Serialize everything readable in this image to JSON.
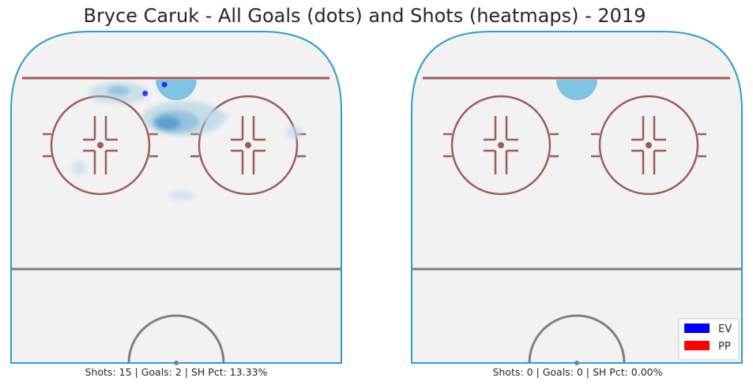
{
  "chart_data": {
    "type": "scatter",
    "title": "Bryce Caruk - All Goals (dots) and Shots (heatmaps) - 2019",
    "legend": {
      "placement": "bottom-right",
      "entries": [
        {
          "label": "EV",
          "color": "#0000ff"
        },
        {
          "label": "PP",
          "color": "#ff0000"
        }
      ]
    },
    "panels": [
      {
        "caption": "Shots: 15 | Goals: 2 | SH Pct: 13.33%",
        "shots": 15,
        "goals_count": 2,
        "goals": [
          {
            "x": -3,
            "y": 88,
            "strength": "EV"
          },
          {
            "x": -8,
            "y": 86,
            "strength": "EV"
          }
        ],
        "heatmap_color": "#1f77b4"
      },
      {
        "caption": "Shots: 0 | Goals: 0 | SH Pct: 0.00%",
        "shots": 0,
        "goals_count": 0,
        "goals": [],
        "heatmap_color": "#1f77b4"
      }
    ]
  },
  "colors": {
    "rink_fill": "#f2f2f2",
    "board": "#2a9fd0",
    "red_line": "#a05a5a",
    "blue_line": "#7f7f7f",
    "crease": "#7fc4e2"
  }
}
